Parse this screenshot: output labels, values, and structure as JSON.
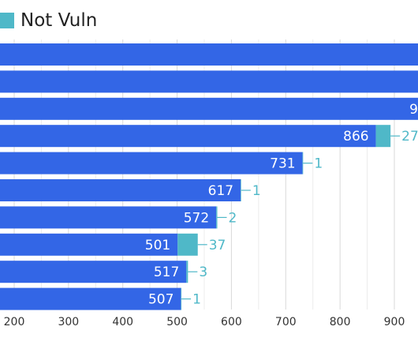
{
  "colors": {
    "vuln": "#3366e6",
    "not_vuln": "#4fb8c8",
    "grid": "#d9d9d9",
    "axis_text": "#333333",
    "label_inside": "#ffffff",
    "label_outside": "#4fb8c8"
  },
  "legend": {
    "not_vuln_label": "Not Vuln"
  },
  "chart_data": {
    "type": "bar",
    "orientation": "horizontal",
    "stacked": true,
    "x_ticks": [
      200,
      300,
      400,
      500,
      600,
      700,
      800,
      900
    ],
    "visible_x_range": [
      130,
      1000
    ],
    "series": [
      {
        "key": "vuln",
        "values": [
          null,
          null,
          null,
          866,
          731,
          617,
          572,
          501,
          517,
          507
        ]
      },
      {
        "name": "Not Vuln",
        "key": "not_vuln",
        "values": [
          null,
          null,
          null,
          27,
          1,
          1,
          2,
          37,
          3,
          1
        ]
      }
    ],
    "value_labels": [
      {
        "vuln": "",
        "not_vuln": ""
      },
      {
        "vuln": "",
        "not_vuln": ""
      },
      {
        "vuln": "9",
        "not_vuln": ""
      },
      {
        "vuln": "866",
        "not_vuln": "27"
      },
      {
        "vuln": "731",
        "not_vuln": "1"
      },
      {
        "vuln": "617",
        "not_vuln": "1"
      },
      {
        "vuln": "572",
        "not_vuln": "2"
      },
      {
        "vuln": "501",
        "not_vuln": "37"
      },
      {
        "vuln": "517",
        "not_vuln": "3"
      },
      {
        "vuln": "507",
        "not_vuln": "1"
      }
    ],
    "grid": true,
    "legend_position": "top-left"
  }
}
